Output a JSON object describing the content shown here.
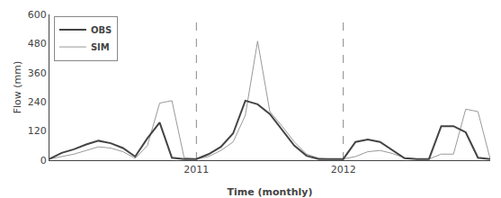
{
  "chart_data": {
    "type": "line",
    "xlabel": "Time (monthly)",
    "ylabel": "Flow (mm)",
    "categories": [
      null,
      null,
      null,
      null,
      null,
      null,
      null,
      null,
      null,
      null,
      null,
      null,
      "2011",
      null,
      null,
      null,
      null,
      null,
      null,
      null,
      null,
      null,
      null,
      null,
      "2012",
      null,
      null,
      null,
      null,
      null,
      null,
      null,
      null,
      null,
      null,
      null,
      null
    ],
    "series": [
      {
        "name": "SIM",
        "color": "#999999",
        "values": [
          5,
          15,
          25,
          40,
          55,
          50,
          35,
          8,
          60,
          235,
          245,
          10,
          5,
          15,
          40,
          75,
          185,
          490,
          200,
          140,
          75,
          25,
          8,
          5,
          5,
          15,
          35,
          40,
          28,
          10,
          5,
          5,
          25,
          25,
          210,
          200,
          5
        ]
      },
      {
        "name": "OBS",
        "color": "#444444",
        "values": [
          5,
          30,
          45,
          65,
          80,
          70,
          50,
          15,
          90,
          155,
          10,
          5,
          5,
          25,
          55,
          110,
          245,
          230,
          190,
          125,
          60,
          18,
          5,
          5,
          5,
          75,
          85,
          75,
          42,
          8,
          5,
          5,
          140,
          140,
          115,
          10,
          5
        ]
      }
    ],
    "ylim": [
      0,
      600
    ],
    "yticks": [
      0,
      120,
      240,
      360,
      480,
      600
    ],
    "grid": false,
    "legend": "upper left"
  }
}
